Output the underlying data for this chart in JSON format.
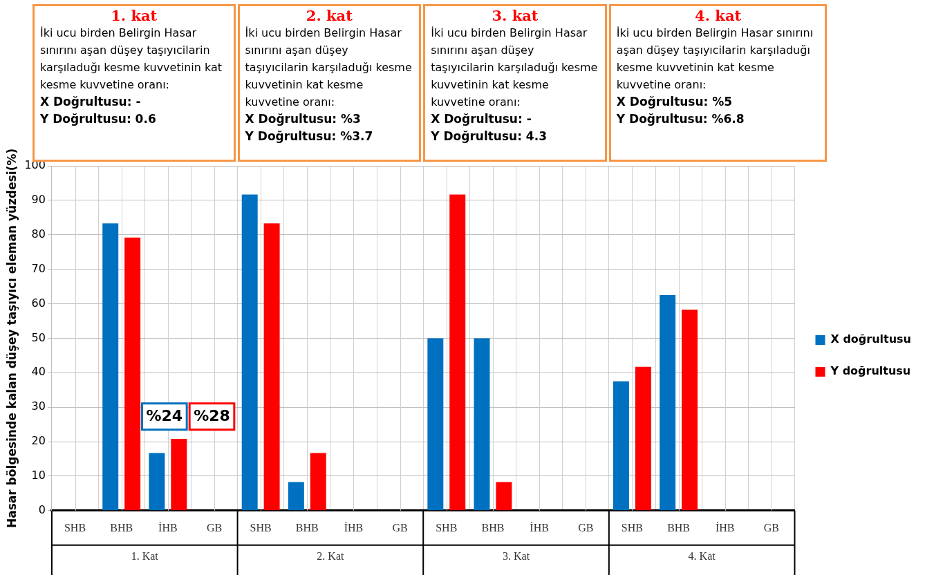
{
  "chart_data": {
    "type": "bar",
    "ylabel": "Hasar bölgesinde kalan düşey taşıyıcı eleman yüzdesi(%)",
    "categories": [
      "SHB",
      "BHB",
      "İHB",
      "GB",
      "SHB",
      "BHB",
      "İHB",
      "GB",
      "SHB",
      "BHB",
      "İHB",
      "GB",
      "SHB",
      "BHB",
      "İHB",
      "GB"
    ],
    "series": [
      {
        "name": "X doğrultusu",
        "color": "#0070c0",
        "values": [
          0,
          83.3,
          16.7,
          0,
          91.7,
          8.3,
          0,
          0,
          50,
          50,
          0,
          0,
          37.5,
          62.5,
          0,
          0
        ]
      },
      {
        "name": "Y doğrultusu",
        "color": "#ff0000",
        "values": [
          0,
          79.2,
          20.8,
          0,
          83.3,
          16.7,
          0,
          0,
          91.7,
          8.3,
          0,
          0,
          41.7,
          58.3,
          0,
          0
        ]
      }
    ],
    "ylim": [
      0,
      100
    ],
    "yticks": [
      0,
      10,
      20,
      30,
      40,
      50,
      60,
      70,
      80,
      90,
      100
    ],
    "grid": true,
    "legend": "right",
    "annotations": [
      "1. kat\nİki ucu birden Belirgin Hasar sınırını aşan düşey taşıyıcilarin karşıladuğı kesme kuvvetinin kat kesme kuvvetine oranı:\nX Doğrultusu: -\nY Doğrultusu: 0.6",
      "2. kat\nİki ucu birden Belirgin Hasar sınırını aşan düşey taşıyıcilarin karşıladuğı kesme kuvvetinin kat kesme kuvvetine oranı:\nX Doğrultusu: %3\nY Doğrultusu: %3.7",
      "3. kat\nİki ucu birden Belirgin Hasar sınırını aşan düşey taşıyıcilarin karşıladuğı kesme kuvvetinin kat kesme kuvvetine oranı:\nX Doğrultusu: -\nY Doğrultusu: 4.3",
      "4. kat\nİki ucu birden Belirgin Hasar sınırını aşan düşey taşıyıcilarin karşıladuğı kesme kuvvetinin kat kesme kuvvetine oranı:\nX Doğrultusu: %5\nY Doğrultusu: %6.8",
      "%24",
      "%28",
      "1. Kat",
      "2. Kat",
      "3. Kat",
      "4. Kat"
    ]
  }
}
